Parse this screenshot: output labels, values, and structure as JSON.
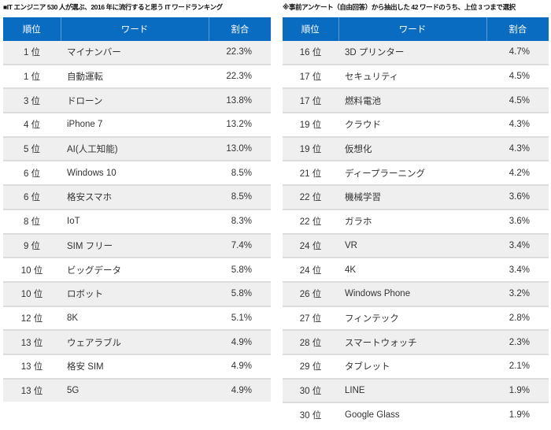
{
  "left": {
    "caption": "■IT エンジニア 530 人が選ぶ、2016 年に流行すると思う IT ワードランキング",
    "headers": [
      "順位",
      "ワード",
      "割合"
    ],
    "rows": [
      [
        "1 位",
        "マイナンバー",
        "22.3%"
      ],
      [
        "1 位",
        "自動運転",
        "22.3%"
      ],
      [
        "3 位",
        "ドローン",
        "13.8%"
      ],
      [
        "4 位",
        "iPhone 7",
        "13.2%"
      ],
      [
        "5 位",
        "AI(人工知能)",
        "13.0%"
      ],
      [
        "6 位",
        "Windows 10",
        "8.5%"
      ],
      [
        "6 位",
        "格安スマホ",
        "8.5%"
      ],
      [
        "8 位",
        "IoT",
        "8.3%"
      ],
      [
        "9 位",
        "SIM フリー",
        "7.4%"
      ],
      [
        "10 位",
        "ビッグデータ",
        "5.8%"
      ],
      [
        "10 位",
        "ロボット",
        "5.8%"
      ],
      [
        "12 位",
        "8K",
        "5.1%"
      ],
      [
        "13 位",
        "ウェアラブル",
        "4.9%"
      ],
      [
        "13 位",
        "格安 SIM",
        "4.9%"
      ],
      [
        "13 位",
        "5G",
        "4.9%"
      ]
    ]
  },
  "right": {
    "caption": "※事前アンケート（自由回答）から抽出した 42 ワードのうち、上位 3 つまで選択",
    "headers": [
      "順位",
      "ワード",
      "割合"
    ],
    "rows": [
      [
        "16 位",
        "3D プリンター",
        "4.7%"
      ],
      [
        "17 位",
        "セキュリティ",
        "4.5%"
      ],
      [
        "17 位",
        "燃料電池",
        "4.5%"
      ],
      [
        "19 位",
        "クラウド",
        "4.3%"
      ],
      [
        "19 位",
        "仮想化",
        "4.3%"
      ],
      [
        "21 位",
        "ディープラーニング",
        "4.2%"
      ],
      [
        "22 位",
        "機械学習",
        "3.6%"
      ],
      [
        "22 位",
        "ガラホ",
        "3.6%"
      ],
      [
        "24 位",
        "VR",
        "3.4%"
      ],
      [
        "24 位",
        "4K",
        "3.4%"
      ],
      [
        "26 位",
        "Windows Phone",
        "3.2%"
      ],
      [
        "27 位",
        "フィンテック",
        "2.8%"
      ],
      [
        "28 位",
        "スマートウォッチ",
        "2.3%"
      ],
      [
        "29 位",
        "タブレット",
        "2.1%"
      ],
      [
        "30 位",
        "LINE",
        "1.9%"
      ],
      [
        "30 位",
        "Google Glass",
        "1.9%"
      ]
    ]
  }
}
